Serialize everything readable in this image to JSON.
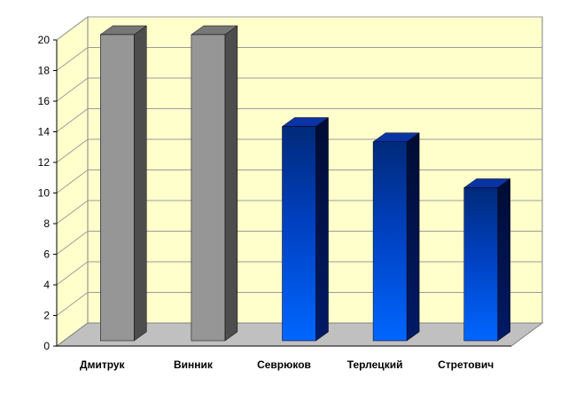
{
  "chart_data": {
    "type": "bar",
    "categories": [
      "Дмитрук",
      "Винник",
      "Севрюков",
      "Терлецкий",
      "Стретович"
    ],
    "values": [
      20,
      20,
      14,
      13,
      10
    ],
    "ylim": [
      0,
      20
    ],
    "yticks": [
      0,
      2,
      4,
      6,
      8,
      10,
      12,
      14,
      16,
      18,
      20
    ],
    "grid": true,
    "legend": "none",
    "three_d": true,
    "colors": {
      "wall": "#FFFFCC",
      "floor": "#C0C0C0",
      "gridline": "#9B9B9B",
      "bars": [
        "gray",
        "gray",
        "blue",
        "blue",
        "blue"
      ]
    }
  }
}
